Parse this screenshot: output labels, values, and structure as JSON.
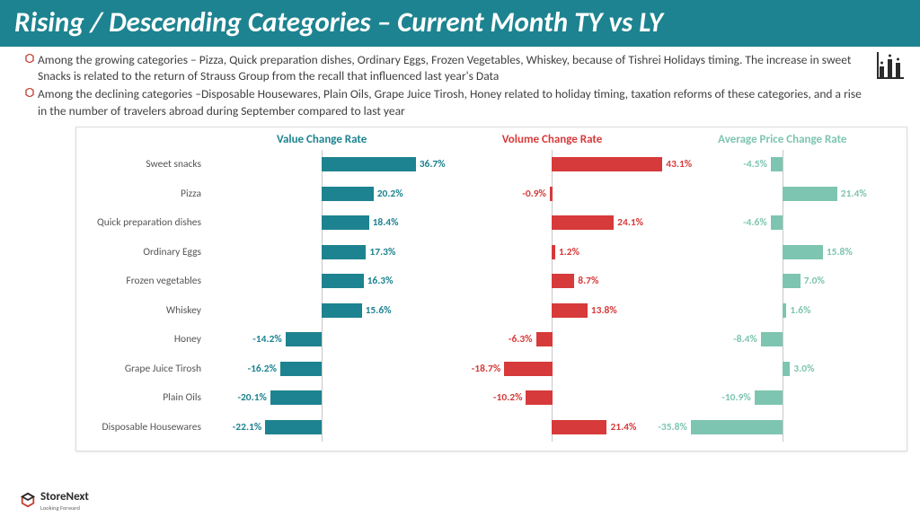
{
  "header": {
    "title": "Rising / Descending Categories – Current Month TY vs LY"
  },
  "bullets": [
    "Among the growing categories – Pizza, Quick preparation dishes, Ordinary Eggs, Frozen Vegetables, Whiskey, because of Tishrei Holidays timing. The increase in sweet Snacks is related to the return of Strauss Group from the recall that influenced last year's Data",
    "Among the declining categories –Disposable Housewares, Plain Oils, Grape Juice Tirosh, Honey related to holiday timing, taxation reforms of these categories, and a rise in the number of travelers abroad during September compared to last year"
  ],
  "chart": {
    "columns": [
      {
        "label": "Value Change Rate",
        "color": "#1d8390"
      },
      {
        "label": "Volume Change Rate",
        "color": "#d63a3a"
      },
      {
        "label": "Average Price Change Rate",
        "color": "#7dc5b0"
      }
    ],
    "scale": 45,
    "label_gap": 4,
    "rows": [
      {
        "cat": "Sweet snacks",
        "vals": [
          36.7,
          43.1,
          -4.5
        ]
      },
      {
        "cat": "Pizza",
        "vals": [
          20.2,
          -0.9,
          21.4
        ]
      },
      {
        "cat": "Quick preparation dishes",
        "vals": [
          18.4,
          24.1,
          -4.6
        ]
      },
      {
        "cat": "Ordinary Eggs",
        "vals": [
          17.3,
          1.2,
          15.8
        ]
      },
      {
        "cat": "Frozen vegetables",
        "vals": [
          16.3,
          8.7,
          7.0
        ]
      },
      {
        "cat": "Whiskey",
        "vals": [
          15.6,
          13.8,
          1.6
        ]
      },
      {
        "cat": "Honey",
        "vals": [
          -14.2,
          -6.3,
          -8.4
        ]
      },
      {
        "cat": "Grape Juice Tirosh",
        "vals": [
          -16.2,
          -18.7,
          3.0
        ]
      },
      {
        "cat": "Plain Oils",
        "vals": [
          -20.1,
          -10.2,
          -10.9
        ]
      },
      {
        "cat": "Disposable Housewares",
        "vals": [
          -22.1,
          21.4,
          -35.8
        ]
      }
    ]
  },
  "logo": {
    "name": "StoreNext",
    "tagline": "Looking Forward"
  }
}
